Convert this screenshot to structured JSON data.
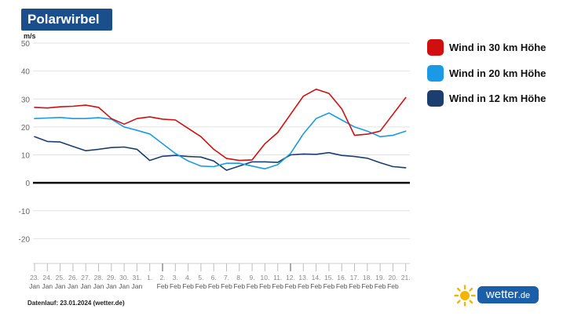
{
  "title": "Polarwirbel",
  "unit": "m/s",
  "footer": "Datenlauf: 23.01.2024 (wetter.de)",
  "brand": {
    "name": "wetter",
    "tld": ".de"
  },
  "legend": [
    {
      "label": "Wind in 30 km Höhe",
      "color": "#d10f0f"
    },
    {
      "label": "Wind in 20 km Höhe",
      "color": "#1a9ae6"
    },
    {
      "label": "Wind in 12 km Höhe",
      "color": "#1c3e6e"
    }
  ],
  "chart_data": {
    "type": "line",
    "ylim": [
      -30,
      50
    ],
    "yticks": [
      50,
      40,
      30,
      20,
      10,
      0,
      -10,
      -20
    ],
    "x_day_labels": [
      "23.",
      "24.",
      "25.",
      "26.",
      "27.",
      "28.",
      "29.",
      "30.",
      "31.",
      "1.",
      "2.",
      "3.",
      "4.",
      "5.",
      "6.",
      "7.",
      "8.",
      "9.",
      "10.",
      "11.",
      "12.",
      "13.",
      "14.",
      "15.",
      "16.",
      "17.",
      "18.",
      "19.",
      "20.",
      "21."
    ],
    "x_month_labels": [
      "Jan",
      "Jan",
      "Jan",
      "Jan",
      "Jan",
      "Jan",
      "Jan",
      "Jan",
      "Jan",
      "",
      "Feb",
      "Feb",
      "Feb",
      "Feb",
      "Feb",
      "Feb",
      "Feb",
      "Feb",
      "Feb",
      "Feb",
      "Feb",
      "Feb",
      "Feb",
      "Feb",
      "Feb",
      "Feb",
      "Feb",
      "Feb",
      "Feb",
      ""
    ],
    "series": [
      {
        "name": "Wind in 30 km Höhe",
        "color": "#d10f0f",
        "values": [
          27,
          26.8,
          27.2,
          27.4,
          27.8,
          27,
          23,
          21,
          23,
          23.6,
          22.8,
          22.5,
          19.5,
          16.5,
          12,
          8.7,
          8,
          8.2,
          14,
          18,
          24.5,
          31,
          33.5,
          32,
          26.5,
          17,
          17.4,
          18.5,
          24.5,
          30.5
        ]
      },
      {
        "name": "Wind in 20 km Höhe",
        "color": "#1a9ae6",
        "values": [
          23,
          23.2,
          23.4,
          23,
          23,
          23.3,
          22.8,
          20,
          18.8,
          17.5,
          14,
          10.5,
          7.8,
          6,
          5.8,
          7,
          7,
          6,
          5,
          6.5,
          10.5,
          17.5,
          23,
          25,
          22.5,
          20,
          18.5,
          16.5,
          17,
          18.5
        ]
      },
      {
        "name": "Wind in 12 km Höhe",
        "color": "#1c3e6e",
        "values": [
          16.5,
          14.8,
          14.6,
          13,
          11.5,
          12,
          12.6,
          12.8,
          12,
          8,
          9.5,
          9.8,
          9.4,
          9.2,
          7.8,
          4.5,
          6,
          7.5,
          7.5,
          7.3,
          10,
          10.3,
          10.2,
          10.8,
          9.8,
          9.4,
          8.8,
          7.2,
          5.8,
          5.4
        ]
      }
    ]
  }
}
